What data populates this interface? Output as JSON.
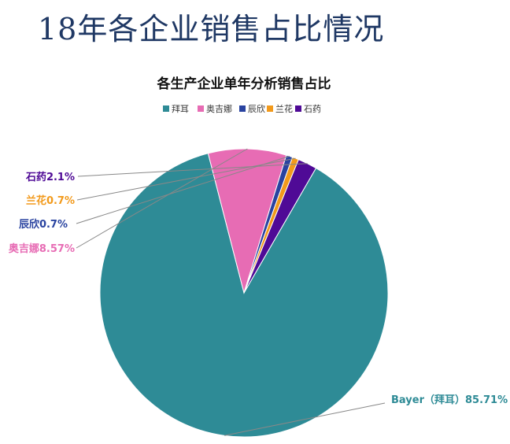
{
  "page": {
    "title": "18年各企业销售占比情况"
  },
  "chart_data": {
    "type": "pie",
    "title": "各生产企业单年分析销售占比",
    "legend_position": "top",
    "series": [
      {
        "name": "拜耳",
        "value": 85.71,
        "color": "#2e8b96",
        "label": "Bayer（拜耳）85.71%"
      },
      {
        "name": "奥吉娜",
        "value": 8.57,
        "color": "#e76cb4",
        "label": "奥吉娜8.57%"
      },
      {
        "name": "辰欣",
        "value": 0.7,
        "color": "#2943a0",
        "label": "辰欣0.7%"
      },
      {
        "name": "兰花",
        "value": 0.7,
        "color": "#f29a1c",
        "label": "兰花0.7%"
      },
      {
        "name": "石药",
        "value": 2.1,
        "color": "#4f0a96",
        "label": "石药2.1%"
      }
    ]
  }
}
